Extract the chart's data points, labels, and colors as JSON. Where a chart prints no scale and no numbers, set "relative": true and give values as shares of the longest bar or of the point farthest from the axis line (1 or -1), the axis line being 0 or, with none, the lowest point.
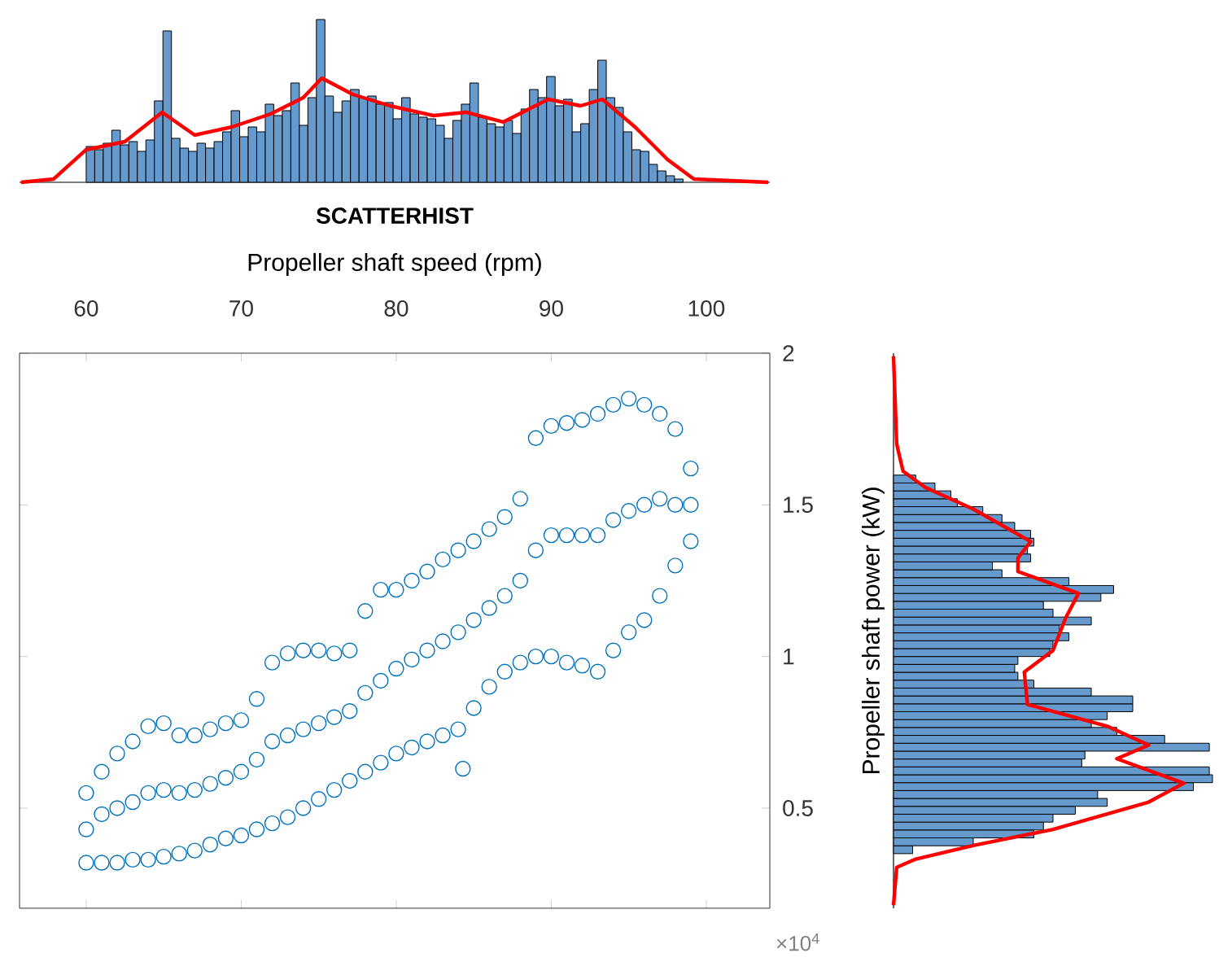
{
  "chart_data": [
    {
      "type": "histogram",
      "relative": true,
      "color": "#6699cc",
      "xlim": [
        55.7,
        104.1
      ],
      "xticks": [
        60,
        70,
        80,
        90,
        100
      ],
      "tick_labels": "x",
      "bins": [
        60,
        60.55,
        61.1,
        61.65,
        62.2,
        62.75,
        63.3,
        63.85,
        64.4,
        64.95,
        65.5,
        66.05,
        66.6,
        67.15,
        67.7,
        68.25,
        68.8,
        69.35,
        69.9,
        70.45,
        71,
        71.55,
        72.1,
        72.65,
        73.2,
        73.75,
        74.3,
        74.85,
        75.4,
        75.95,
        76.5,
        77.05,
        77.6,
        78.15,
        78.7,
        79.25,
        79.8,
        80.35,
        80.9,
        81.45,
        82,
        82.55,
        83.1,
        83.65,
        84.2,
        84.75,
        85.3,
        85.85,
        86.4,
        86.95,
        87.5,
        88.05,
        88.6,
        89.15,
        89.7,
        90.25,
        90.8,
        91.35,
        91.9,
        92.45,
        93,
        93.55,
        94.1,
        94.65,
        95.2,
        95.75,
        96.3,
        96.85,
        97.4,
        97.95,
        98.5
      ],
      "values": [
        0.22,
        0.2,
        0.24,
        0.32,
        0.23,
        0.25,
        0.19,
        0.26,
        0.5,
        0.93,
        0.27,
        0.21,
        0.19,
        0.24,
        0.21,
        0.25,
        0.31,
        0.44,
        0.28,
        0.34,
        0.31,
        0.48,
        0.41,
        0.44,
        0.61,
        0.35,
        0.52,
        1,
        0.53,
        0.43,
        0.5,
        0.57,
        0.52,
        0.53,
        0.48,
        0.49,
        0.39,
        0.52,
        0.42,
        0.4,
        0.39,
        0.35,
        0.27,
        0.38,
        0.48,
        0.61,
        0.4,
        0.36,
        0.34,
        0.38,
        0.3,
        0.45,
        0.57,
        0.52,
        0.65,
        0.47,
        0.51,
        0.31,
        0.36,
        0.57,
        0.75,
        0.52,
        0.46,
        0.31,
        0.2,
        0.19,
        0.11,
        0.07,
        0.04,
        0.02
      ],
      "series": [
        {
          "type": "line",
          "color": "#ff0000",
          "x": [
            55.8,
            57.9,
            60,
            62.5,
            64.9,
            67,
            69.4,
            71.9,
            74,
            75.2,
            77.2,
            79.6,
            82.4,
            84.5,
            86.9,
            89.8,
            91.9,
            93.3,
            95.4,
            97.5,
            99.2,
            104
          ],
          "values": [
            0,
            0.02,
            0.2,
            0.25,
            0.43,
            0.29,
            0.34,
            0.42,
            0.52,
            0.64,
            0.54,
            0.47,
            0.41,
            0.43,
            0.37,
            0.51,
            0.47,
            0.51,
            0.34,
            0.14,
            0.02,
            0
          ]
        }
      ]
    },
    {
      "type": "scatter",
      "title": "SCATTERHIST",
      "xlabel": "Propeller shaft speed (rpm)",
      "color": "#0072bd",
      "marker": "circle",
      "xlim": [
        55.7,
        104.1
      ],
      "ylim": [
        0.17,
        2
      ],
      "xticks": [
        60,
        70,
        80,
        90,
        100
      ],
      "yticks": [
        0.5,
        1,
        1.5,
        2
      ],
      "tick_labels": false,
      "annotations": [
        "×10$^{4}$"
      ],
      "x": [
        60,
        60,
        60,
        61,
        61,
        61,
        62,
        62,
        62,
        63,
        63,
        63,
        64,
        64,
        64,
        65,
        65,
        65,
        66,
        66,
        66,
        67,
        67,
        67,
        68,
        68,
        68,
        69,
        69,
        69,
        70,
        70,
        70,
        71,
        71,
        71,
        72,
        72,
        72,
        73,
        73,
        73,
        74,
        74,
        74,
        75,
        75,
        75,
        76,
        76,
        76,
        77,
        77,
        77,
        78,
        78,
        78,
        79,
        79,
        79,
        80,
        80,
        80,
        81,
        81,
        81,
        82,
        82,
        82,
        83,
        83,
        83,
        84,
        84,
        84,
        85,
        85,
        85,
        86,
        86,
        86,
        87,
        87,
        87,
        88,
        88,
        88,
        89,
        89,
        89,
        90,
        90,
        90,
        91,
        91,
        91,
        92,
        92,
        92,
        93,
        93,
        93,
        94,
        94,
        94,
        95,
        95,
        95,
        96,
        96,
        96,
        97,
        97,
        97,
        98,
        98,
        98,
        99,
        99,
        99,
        84.3
      ],
      "values": [
        0.32,
        0.43,
        0.55,
        0.32,
        0.48,
        0.62,
        0.32,
        0.5,
        0.68,
        0.33,
        0.52,
        0.72,
        0.33,
        0.55,
        0.77,
        0.34,
        0.56,
        0.78,
        0.35,
        0.55,
        0.74,
        0.36,
        0.56,
        0.74,
        0.38,
        0.58,
        0.76,
        0.4,
        0.6,
        0.78,
        0.41,
        0.62,
        0.79,
        0.43,
        0.66,
        0.86,
        0.45,
        0.72,
        0.98,
        0.47,
        0.74,
        1.01,
        0.5,
        0.76,
        1.02,
        0.53,
        0.78,
        1.02,
        0.56,
        0.8,
        1.01,
        0.59,
        0.82,
        1.02,
        0.62,
        0.88,
        1.15,
        0.65,
        0.92,
        1.22,
        0.68,
        0.96,
        1.22,
        0.7,
        0.99,
        1.25,
        0.72,
        1.02,
        1.28,
        0.74,
        1.05,
        1.32,
        0.76,
        1.08,
        1.35,
        0.83,
        1.12,
        1.38,
        0.9,
        1.16,
        1.42,
        0.95,
        1.2,
        1.46,
        0.98,
        1.25,
        1.52,
        1,
        1.35,
        1.72,
        1,
        1.4,
        1.76,
        0.98,
        1.4,
        1.77,
        0.97,
        1.4,
        1.78,
        0.95,
        1.4,
        1.8,
        1.02,
        1.45,
        1.83,
        1.08,
        1.48,
        1.85,
        1.12,
        1.5,
        1.83,
        1.2,
        1.52,
        1.8,
        1.3,
        1.5,
        1.75,
        1.38,
        1.5,
        1.62,
        0.63
      ]
    },
    {
      "type": "histogram",
      "orientation": "horizontal",
      "relative": true,
      "color": "#6699cc",
      "ylim": [
        0.17,
        2
      ],
      "yticks": [
        0.5,
        1,
        1.5,
        2
      ],
      "tick_labels": "y",
      "ylabel": "Propeller shaft power (kW)",
      "bins": [
        0.35,
        0.376,
        0.402,
        0.428,
        0.454,
        0.48,
        0.506,
        0.532,
        0.558,
        0.584,
        0.61,
        0.636,
        0.662,
        0.688,
        0.714,
        0.74,
        0.766,
        0.792,
        0.818,
        0.844,
        0.87,
        0.896,
        0.922,
        0.948,
        0.974,
        1,
        1.026,
        1.052,
        1.078,
        1.104,
        1.13,
        1.156,
        1.182,
        1.208,
        1.234,
        1.26,
        1.286,
        1.312,
        1.338,
        1.364,
        1.39,
        1.416,
        1.442,
        1.468,
        1.494,
        1.52,
        1.546,
        1.572,
        1.598
      ],
      "values": [
        0.06,
        0.25,
        0.44,
        0.47,
        0.5,
        0.57,
        0.67,
        0.64,
        0.94,
        1,
        0.99,
        0.59,
        0.6,
        0.99,
        0.85,
        0.7,
        0.62,
        0.67,
        0.75,
        0.75,
        0.62,
        0.44,
        0.39,
        0.38,
        0.39,
        0.49,
        0.5,
        0.55,
        0.52,
        0.62,
        0.5,
        0.47,
        0.65,
        0.69,
        0.55,
        0.34,
        0.31,
        0.43,
        0.42,
        0.44,
        0.43,
        0.38,
        0.34,
        0.28,
        0.2,
        0.18,
        0.13,
        0.07
      ],
      "series": [
        {
          "type": "line",
          "color": "#ff0000",
          "x": [
            0.18,
            0.305,
            0.332,
            0.377,
            0.43,
            0.52,
            0.582,
            0.663,
            0.708,
            0.77,
            0.842,
            0.949,
            1.02,
            1.128,
            1.208,
            1.28,
            1.325,
            1.379,
            1.486,
            1.557,
            1.611,
            1.7,
            1.99
          ],
          "values": [
            0,
            0.01,
            0.07,
            0.25,
            0.5,
            0.8,
            0.91,
            0.7,
            0.8,
            0.67,
            0.42,
            0.41,
            0.5,
            0.54,
            0.58,
            0.39,
            0.39,
            0.43,
            0.25,
            0.1,
            0.03,
            0.01,
            0
          ]
        }
      ]
    }
  ]
}
